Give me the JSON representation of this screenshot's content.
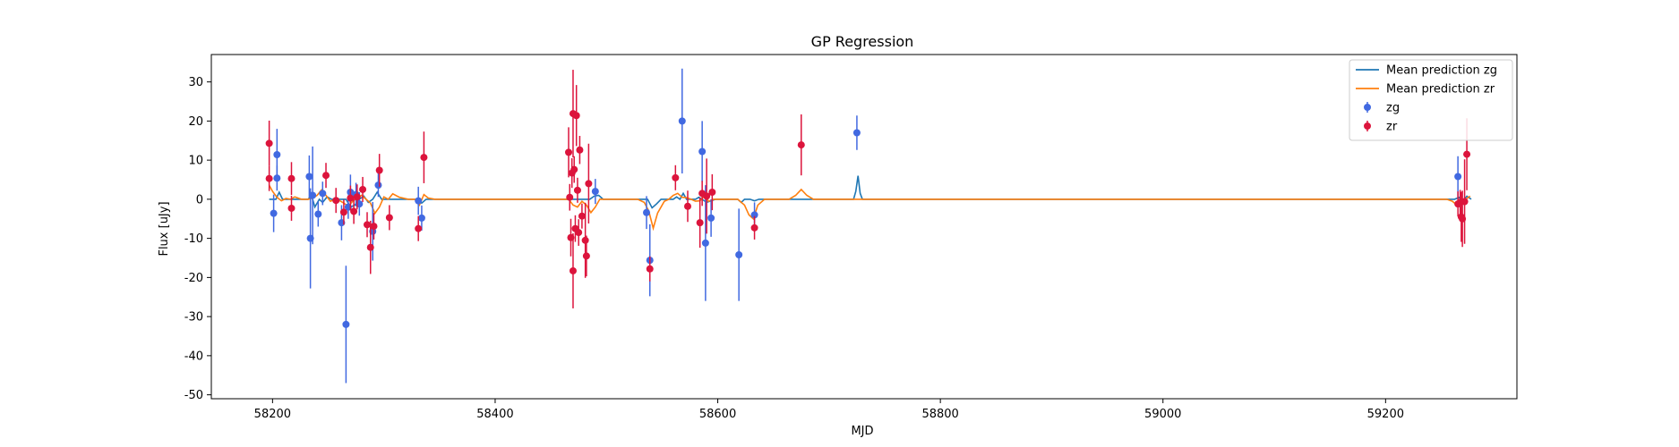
{
  "chart_data": {
    "type": "scatter",
    "title": "GP Regression",
    "xlabel": "MJD",
    "ylabel": "Flux [uJy]",
    "xlim": [
      58145,
      59318
    ],
    "ylim": [
      -51,
      37
    ],
    "xticks": [
      58200,
      58400,
      58600,
      58800,
      59000,
      59200
    ],
    "yticks": [
      -50,
      -40,
      -30,
      -20,
      -10,
      0,
      10,
      20,
      30
    ],
    "grid": false,
    "legend_position": "top-right",
    "legend": [
      {
        "label": "Mean prediction zg",
        "kind": "line",
        "color": "#1f77b4"
      },
      {
        "label": "Mean prediction zr",
        "kind": "line",
        "color": "#ff7f0e"
      },
      {
        "label": "zg",
        "kind": "errorbar",
        "color": "#4169e1"
      },
      {
        "label": "zr",
        "kind": "errorbar",
        "color": "#dc143c"
      }
    ],
    "series": [
      {
        "name": "Mean prediction zg",
        "kind": "line",
        "color": "#1f77b4",
        "x": [
          58197,
          58200,
          58203,
          58206,
          58209,
          58212,
          58232,
          58235,
          58238,
          58242,
          58245,
          58249,
          58253,
          58262,
          58266,
          58270,
          58274,
          58278,
          58282,
          58286,
          58290,
          58294,
          58298,
          58303,
          58330,
          58334,
          58338,
          58342,
          58480,
          58485,
          58489,
          58493,
          58497,
          58532,
          58537,
          58541,
          58545,
          58549,
          58560,
          58563,
          58566,
          58569,
          58572,
          58575,
          58580,
          58583,
          58586,
          58590,
          58594,
          58598,
          58602,
          58618,
          58621,
          58624,
          58629,
          58633,
          58637,
          58641,
          58722,
          58724,
          58726,
          58728,
          58730,
          59262,
          59266,
          59269,
          59273,
          59277
        ],
        "y": [
          0,
          0,
          0,
          1.8,
          0,
          0,
          0,
          1,
          -2,
          0,
          -0.8,
          0.6,
          0,
          0,
          0,
          -2,
          -1.5,
          0,
          0.8,
          -0.8,
          0,
          1.8,
          0,
          0,
          0,
          -1,
          0,
          0,
          0,
          0,
          0.8,
          1,
          0,
          0,
          0,
          -2.2,
          -1.2,
          0,
          0,
          0.6,
          0,
          1.5,
          0,
          0,
          0,
          0.5,
          0,
          -0.8,
          -0.4,
          0,
          0,
          0,
          -0.8,
          0,
          0,
          -0.4,
          0,
          0,
          0,
          2,
          6,
          1.5,
          0,
          0,
          0.5,
          -0.6,
          0.8,
          0
        ]
      },
      {
        "name": "Mean prediction zr",
        "kind": "line",
        "color": "#ff7f0e",
        "x": [
          58197,
          58200,
          58204,
          58208,
          58212,
          58216,
          58220,
          58226,
          58232,
          58236,
          58240,
          58244,
          58248,
          58252,
          58256,
          58260,
          58264,
          58268,
          58272,
          58276,
          58280,
          58284,
          58288,
          58292,
          58296,
          58300,
          58304,
          58308,
          58314,
          58322,
          58328,
          58332,
          58336,
          58340,
          58346,
          58460,
          58466,
          58470,
          58474,
          58478,
          58482,
          58486,
          58490,
          58494,
          58500,
          58528,
          58534,
          58538,
          58542,
          58546,
          58552,
          58556,
          58560,
          58564,
          58568,
          58572,
          58576,
          58580,
          58584,
          58588,
          58592,
          58596,
          58600,
          58606,
          58618,
          58624,
          58628,
          58632,
          58636,
          58642,
          58664,
          58670,
          58675,
          58680,
          58686,
          59255,
          59260,
          59264,
          59268,
          59272,
          59276
        ],
        "y": [
          3.6,
          2,
          0.5,
          -0.4,
          0.2,
          0,
          0.6,
          0,
          0,
          0.3,
          1,
          2.4,
          1,
          -0.5,
          0,
          -0.3,
          -1,
          -1.8,
          -0.5,
          0.3,
          1,
          0,
          -1,
          -3.6,
          -2,
          0.6,
          0,
          1.4,
          0.5,
          0,
          0,
          -1.5,
          1.2,
          0.3,
          0,
          0,
          0,
          -1.5,
          -2,
          -0.5,
          -1.5,
          -3.4,
          -2,
          0,
          0,
          0,
          -0.8,
          -3,
          -7.4,
          -3.5,
          -0.5,
          0,
          1,
          1.5,
          0.5,
          0.4,
          0,
          -0.5,
          -0.4,
          0.8,
          -0.5,
          0,
          0,
          0,
          0,
          -1.5,
          -4,
          -5,
          -1.5,
          0,
          0,
          1,
          2.5,
          1,
          0,
          0,
          -0.5,
          -1.5,
          -1,
          0,
          0.8
        ]
      },
      {
        "name": "zg",
        "kind": "errorbar",
        "color": "#4169e1",
        "points": [
          {
            "x": 58201,
            "y": -3.6,
            "err": 4.8
          },
          {
            "x": 58204,
            "y": 11.4,
            "err": 6.6
          },
          {
            "x": 58204,
            "y": 5.4,
            "err": 3.2
          },
          {
            "x": 58233,
            "y": 5.8,
            "err": 5.4
          },
          {
            "x": 58234,
            "y": -10,
            "err": 12.8
          },
          {
            "x": 58236,
            "y": 1,
            "err": 12.5
          },
          {
            "x": 58241,
            "y": -3.8,
            "err": 3.2
          },
          {
            "x": 58245,
            "y": 1.5,
            "err": 3
          },
          {
            "x": 58262,
            "y": -6,
            "err": 4.5
          },
          {
            "x": 58266,
            "y": -32,
            "err": 15
          },
          {
            "x": 58268,
            "y": -2,
            "err": 3
          },
          {
            "x": 58270,
            "y": 1.8,
            "err": 4.5
          },
          {
            "x": 58275,
            "y": 1.2,
            "err": 3
          },
          {
            "x": 58278,
            "y": -1.2,
            "err": 3
          },
          {
            "x": 58290,
            "y": -8.2,
            "err": 7.5
          },
          {
            "x": 58295,
            "y": 3.6,
            "err": 3
          },
          {
            "x": 58331,
            "y": -0.4,
            "err": 3.6
          },
          {
            "x": 58334,
            "y": -4.8,
            "err": 3.2
          },
          {
            "x": 58490,
            "y": 2,
            "err": 3.2
          },
          {
            "x": 58536,
            "y": -3.4,
            "err": 4.2
          },
          {
            "x": 58539,
            "y": -15.6,
            "err": 9.2
          },
          {
            "x": 58568,
            "y": 20,
            "err": 13.4
          },
          {
            "x": 58586,
            "y": 12.2,
            "err": 7.8
          },
          {
            "x": 58589,
            "y": -11.2,
            "err": 14.8
          },
          {
            "x": 58594,
            "y": -4.8,
            "err": 4.8
          },
          {
            "x": 58619,
            "y": -14.2,
            "err": 11.8
          },
          {
            "x": 58633,
            "y": -4,
            "err": 3.2
          },
          {
            "x": 58725,
            "y": 17,
            "err": 4.4
          },
          {
            "x": 59265,
            "y": 5.8,
            "err": 5.2
          }
        ]
      },
      {
        "name": "zr",
        "kind": "errorbar",
        "color": "#dc143c",
        "points": [
          {
            "x": 58197,
            "y": 14.3,
            "err": 5.8
          },
          {
            "x": 58197,
            "y": 5.3,
            "err": 3.2
          },
          {
            "x": 58217,
            "y": 5.3,
            "err": 4.2
          },
          {
            "x": 58217,
            "y": -2.3,
            "err": 3.2
          },
          {
            "x": 58248,
            "y": 6.1,
            "err": 3.2
          },
          {
            "x": 58257,
            "y": -0.3,
            "err": 3.2
          },
          {
            "x": 58264,
            "y": -3.3,
            "err": 3.2
          },
          {
            "x": 58270,
            "y": 0.3,
            "err": 3.2
          },
          {
            "x": 58273,
            "y": -3.1,
            "err": 3.2
          },
          {
            "x": 58276,
            "y": 0.6,
            "err": 3.2
          },
          {
            "x": 58281,
            "y": 2.5,
            "err": 3.2
          },
          {
            "x": 58285,
            "y": -6.5,
            "err": 3.2
          },
          {
            "x": 58288,
            "y": -12.3,
            "err": 6.8
          },
          {
            "x": 58291,
            "y": -6.9,
            "err": 3.4
          },
          {
            "x": 58296,
            "y": 7.4,
            "err": 4.2
          },
          {
            "x": 58305,
            "y": -4.7,
            "err": 3.2
          },
          {
            "x": 58331,
            "y": -7.5,
            "err": 3.2
          },
          {
            "x": 58336,
            "y": 10.7,
            "err": 6.6
          },
          {
            "x": 58466,
            "y": 12,
            "err": 6.4
          },
          {
            "x": 58467,
            "y": 0.5,
            "err": 3.4
          },
          {
            "x": 58468,
            "y": -9.8,
            "err": 4.8
          },
          {
            "x": 58469,
            "y": 6.7,
            "err": 3.8
          },
          {
            "x": 58470,
            "y": -18.3,
            "err": 9.6
          },
          {
            "x": 58470,
            "y": 21.9,
            "err": 11.2
          },
          {
            "x": 58471,
            "y": 7.6,
            "err": 3.4
          },
          {
            "x": 58472,
            "y": -7.5,
            "err": 3.4
          },
          {
            "x": 58473,
            "y": 21.4,
            "err": 7.8
          },
          {
            "x": 58474,
            "y": 2.3,
            "err": 3.2
          },
          {
            "x": 58475,
            "y": -8.5,
            "err": 3.4
          },
          {
            "x": 58476,
            "y": 12.6,
            "err": 3.6
          },
          {
            "x": 58478,
            "y": -4.3,
            "err": 3.2
          },
          {
            "x": 58481,
            "y": -10.5,
            "err": 9.6
          },
          {
            "x": 58482,
            "y": -14.5,
            "err": 5.2
          },
          {
            "x": 58484,
            "y": 4,
            "err": 10.2
          },
          {
            "x": 58539,
            "y": -17.8,
            "err": 3.2
          },
          {
            "x": 58562,
            "y": 5.5,
            "err": 3.2
          },
          {
            "x": 58573,
            "y": -1.8,
            "err": 4
          },
          {
            "x": 58584,
            "y": -6,
            "err": 6.4
          },
          {
            "x": 58586,
            "y": 1.5,
            "err": 3.2
          },
          {
            "x": 58590,
            "y": 0.8,
            "err": 9.6
          },
          {
            "x": 58595,
            "y": 1.8,
            "err": 4.6
          },
          {
            "x": 58633,
            "y": -7.3,
            "err": 3
          },
          {
            "x": 58675,
            "y": 13.9,
            "err": 7.8
          },
          {
            "x": 59265,
            "y": -1.2,
            "err": 3.2
          },
          {
            "x": 59267,
            "y": -0.8,
            "err": 3.2
          },
          {
            "x": 59268,
            "y": -4.5,
            "err": 6.4
          },
          {
            "x": 59269,
            "y": -5,
            "err": 7.2
          },
          {
            "x": 59271,
            "y": -0.6,
            "err": 10.8
          },
          {
            "x": 59273,
            "y": 11.5,
            "err": 9.2
          }
        ]
      }
    ]
  }
}
